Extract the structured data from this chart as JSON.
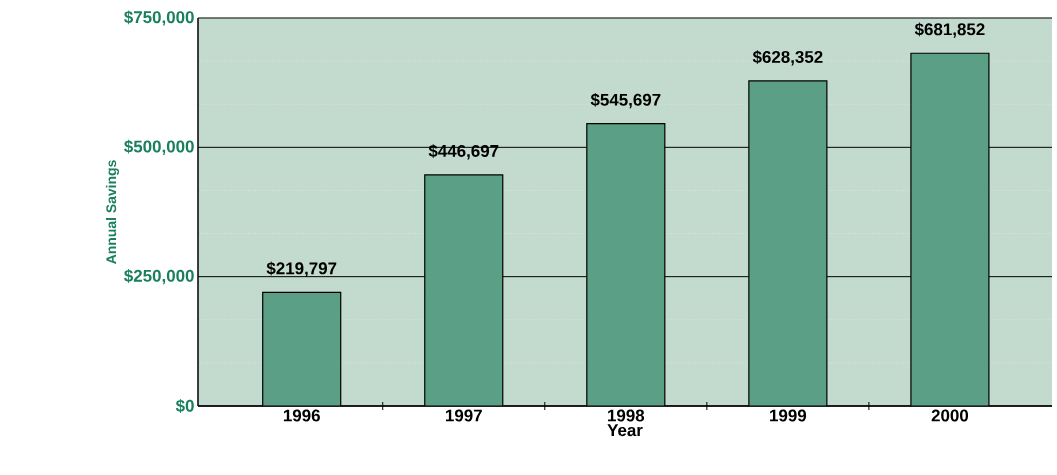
{
  "chart_data": {
    "type": "bar",
    "xlabel": "Year",
    "ylabel": "Annual Savings",
    "categories": [
      "1996",
      "1997",
      "1998",
      "1999",
      "2000"
    ],
    "values": [
      219797,
      446697,
      545697,
      628352,
      681852
    ],
    "value_labels": [
      "$219,797",
      "$446,697",
      "$545,697",
      "$628,352",
      "$681,852"
    ],
    "color": "#5a9f86",
    "ylim": [
      0,
      750000
    ],
    "yticks": [
      {
        "value": 0,
        "label": "$0"
      },
      {
        "value": 250000,
        "label": "$250,000"
      },
      {
        "value": 500000,
        "label": "$500,000"
      },
      {
        "value": 750000,
        "label": "$750,000"
      }
    ],
    "grid": "y"
  }
}
